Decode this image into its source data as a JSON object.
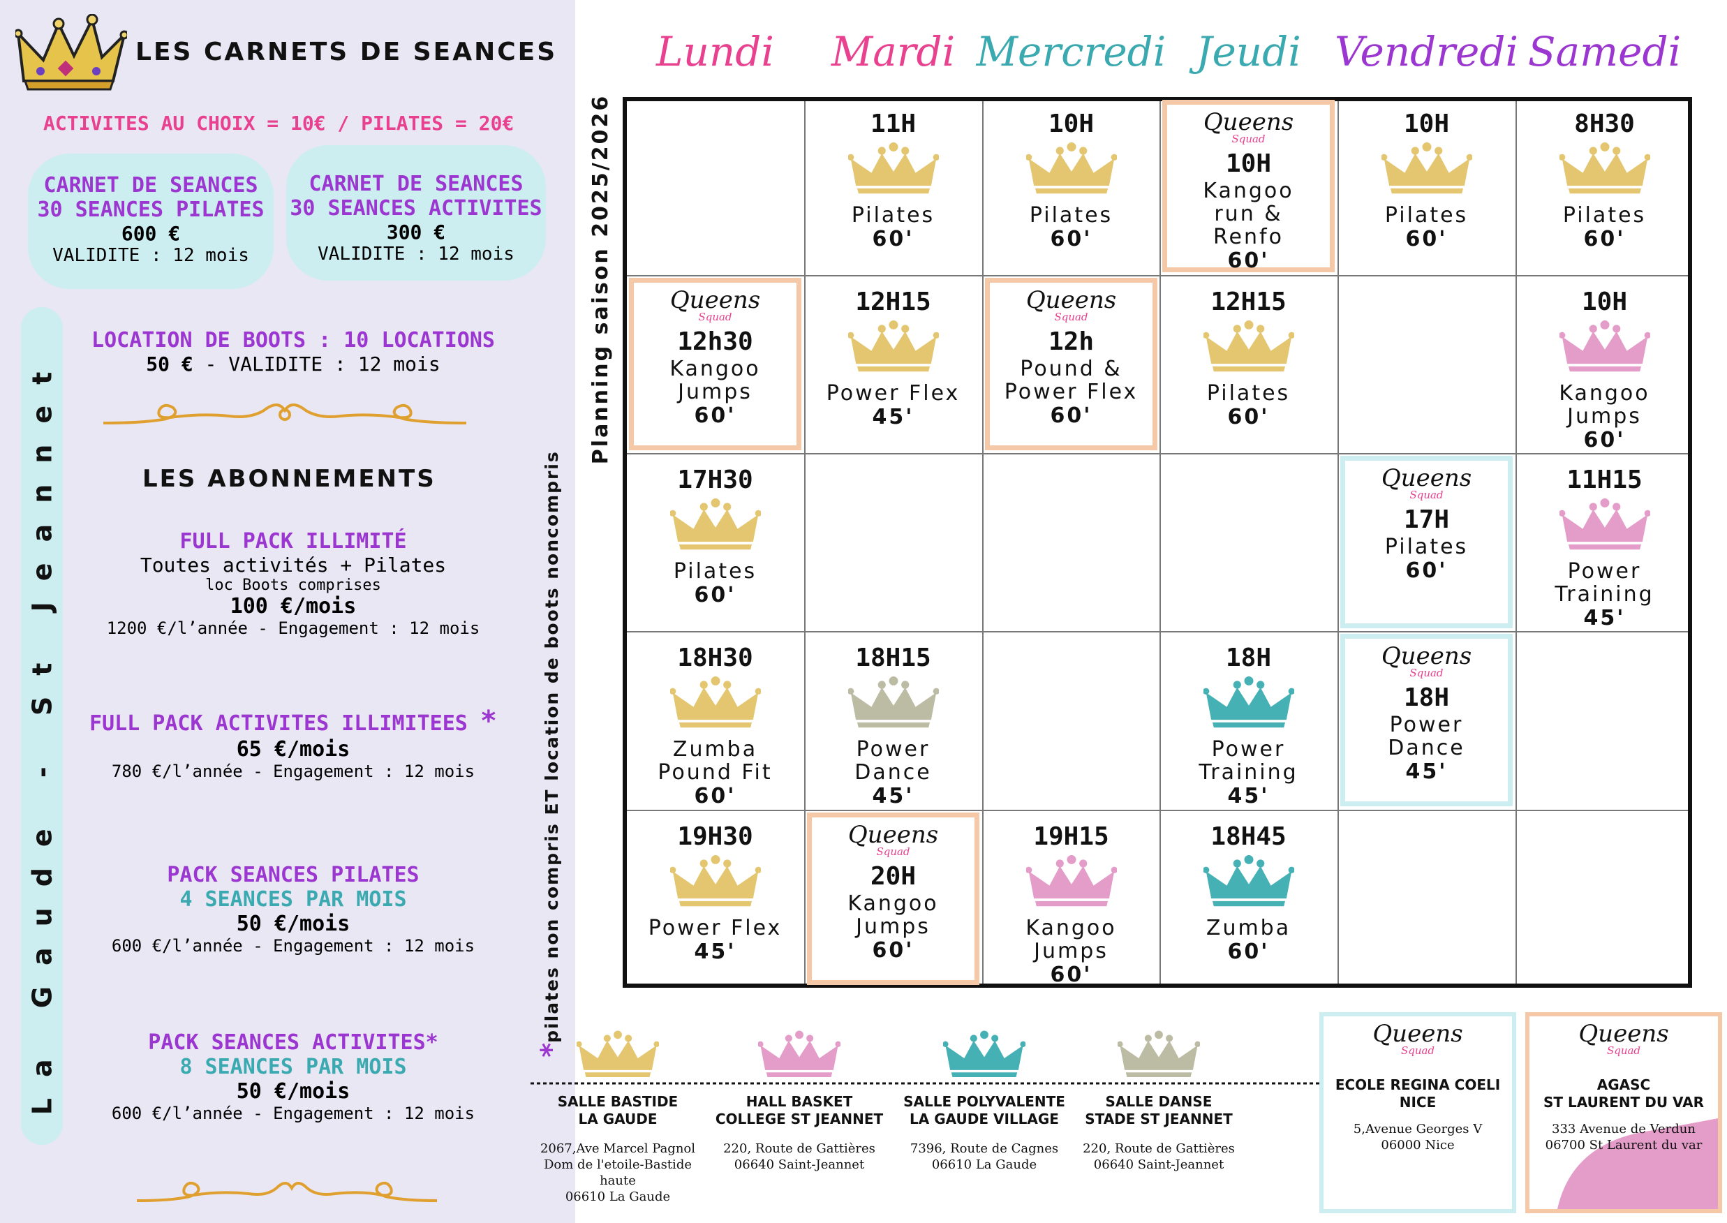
{
  "colors": {
    "gold": "#e3c66f",
    "pink_crown": "#e49cc8",
    "teal_crown": "#45b1b5",
    "grey_crown": "#bcbca5",
    "pink": "#e8418f",
    "purple": "#9b36d0",
    "teal": "#3aaab0",
    "peach": "#f5c8a8",
    "light_blue": "#cdeef0",
    "lavender": "#e9e7f4"
  },
  "left": {
    "title": "LES CARNETS DE SEANCES",
    "price_line": "ACTIVITES AU CHOIX = 10€ / PILATES = 20€",
    "carnet1": {
      "l1": "CARNET DE SEANCES",
      "l2": "30 SEANCES PILATES",
      "price": "600 €",
      "valid": "VALIDITE : 12 mois"
    },
    "carnet2": {
      "l1": "CARNET DE SEANCES",
      "l2": "30 SEANCES ACTIVITES",
      "price": "300 €",
      "valid": "VALIDITE : 12 mois"
    },
    "boots": {
      "l1": "LOCATION DE BOOTS : 10 LOCATIONS",
      "price": "50 €",
      "valid": " - VALIDITE : 12 mois"
    },
    "abonnements": "LES ABONNEMENTS",
    "full_pack": {
      "title": "FULL PACK ILLIMITÉ",
      "l1": "Toutes activités + Pilates",
      "l2": "loc Boots comprises",
      "price": "100 €/mois",
      "year": "1200 €/l’année - Engagement : 12 mois"
    },
    "full_act": {
      "title": "FULL PACK ACTIVITES ILLIMITEES",
      "star": "*",
      "price": "65 €/mois",
      "year": "780 €/l’année - Engagement : 12 mois"
    },
    "pack_pil": {
      "title": "PACK SEANCES PILATES",
      "sub": "4 SEANCES PAR MOIS",
      "price": "50 €/mois",
      "year": "600 €/l’année - Engagement : 12 mois"
    },
    "pack_act": {
      "title": "PACK SEANCES ACTIVITES*",
      "sub": "8 SEANCES PAR MOIS",
      "price": "50 €/mois",
      "year": "600 €/l’année - Engagement : 12 mois"
    },
    "vertical": "La Gaude - St Jeannet"
  },
  "footnote_star": "*",
  "footnote": "pilates non compris ET location de boots noncompris",
  "planning_label": "Planning saison 2025/2026",
  "days": [
    "Lundi",
    "Mardi",
    "Mercredi",
    "Jeudi",
    "Vendredi",
    "Samedi"
  ],
  "signature": {
    "main": "Queens",
    "sub": "Squad"
  },
  "cells": [
    {
      "time": "11H",
      "act": "Pilates",
      "dur": "60'"
    },
    {
      "time": "10H",
      "act": "Pilates",
      "dur": "60'"
    },
    {
      "time": "10H",
      "act": "Kangoo run & Renfo",
      "dur": "60'"
    },
    {
      "time": "10H",
      "act": "Pilates",
      "dur": "60'"
    },
    {
      "time": "8H30",
      "act": "Pilates",
      "dur": "60'"
    },
    {
      "time": "12h30",
      "act": "Kangoo Jumps",
      "dur": "60'"
    },
    {
      "time": "12H15",
      "act": "Power Flex",
      "dur": "45'"
    },
    {
      "time": "12h",
      "act": "Pound & Power Flex",
      "dur": "60'"
    },
    {
      "time": "12H15",
      "act": "Pilates",
      "dur": "60'"
    },
    {
      "time": "10H",
      "act": "Kangoo Jumps",
      "dur": "60'"
    },
    {
      "time": "17H30",
      "act": "Pilates",
      "dur": "60'"
    },
    {
      "time": "17H",
      "act": "Pilates",
      "dur": "60'"
    },
    {
      "time": "11H15",
      "act": "Power Training",
      "dur": "45'"
    },
    {
      "time": "18H30",
      "act": "Zumba Pound Fit",
      "dur": "60'"
    },
    {
      "time": "18H15",
      "act": "Power Dance",
      "dur": "45'"
    },
    {
      "time": "18H",
      "act": "Power Training",
      "dur": "45'"
    },
    {
      "time": "18H",
      "act": "Power Dance",
      "dur": "45'"
    },
    {
      "time": "19H30",
      "act": "Power Flex",
      "dur": "45'"
    },
    {
      "time": "20H",
      "act": "Kangoo Jumps",
      "dur": "60'"
    },
    {
      "time": "19H15",
      "act": "Kangoo Jumps",
      "dur": "60'"
    },
    {
      "time": "18H45",
      "act": "Zumba",
      "dur": "60'"
    }
  ],
  "venues": [
    {
      "name": "SALLE BASTIDE\nLA GAUDE",
      "addr": "2067,Ave Marcel Pagnol\nDom de l'etoile-Bastide haute\n06610 La Gaude"
    },
    {
      "name": "HALL BASKET\nCOLLEGE ST JEANNET",
      "addr": "220, Route de Gattières\n06640 Saint-Jeannet"
    },
    {
      "name": "SALLE POLYVALENTE\nLA GAUDE VILLAGE",
      "addr": "7396, Route de Cagnes\n06610 La Gaude"
    },
    {
      "name": "SALLE DANSE\nSTADE ST JEANNET",
      "addr": "220, Route de Gattières\n06640 Saint-Jeannet"
    },
    {
      "name": "ECOLE REGINA COELI\nNICE",
      "addr": "5,Avenue Georges V\n06000 Nice"
    },
    {
      "name": "AGASC\nST LAURENT DU VAR",
      "addr": "333 Avenue de Verdun\n06700 St Laurent du var"
    }
  ]
}
